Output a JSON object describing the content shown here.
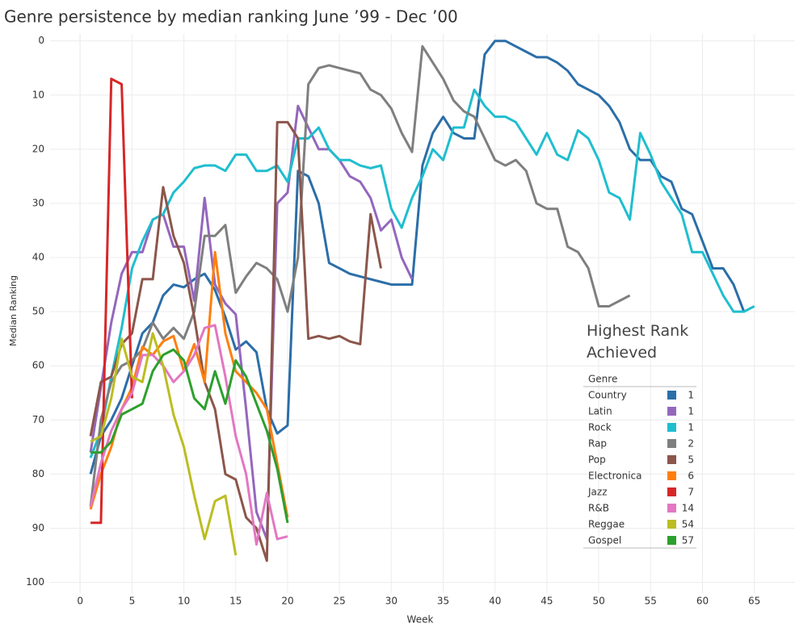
{
  "chart_data": {
    "type": "line",
    "title": "Genre persistence by median ranking June ’99 - Dec ’00",
    "x_label": "Week",
    "y_label": "Median Ranking",
    "xlim": [
      -2.9,
      69
    ],
    "ylim": [
      102,
      -1.3
    ],
    "xticks": [
      0,
      5,
      10,
      15,
      20,
      25,
      30,
      35,
      40,
      45,
      50,
      55,
      60,
      65
    ],
    "yticks": [
      0,
      10,
      20,
      30,
      40,
      50,
      60,
      70,
      80,
      90,
      100
    ],
    "grid": true,
    "legend_title": "Highest Rank Achieved",
    "legend_header": "Genre",
    "series": [
      {
        "name": "Country",
        "color": "#2b6ea8",
        "highest_rank": 1,
        "x": [
          1,
          2,
          3,
          4,
          5,
          6,
          7,
          8,
          9,
          10,
          11,
          12,
          13,
          14,
          15,
          16,
          17,
          18,
          19,
          20,
          21,
          22,
          23,
          24,
          25,
          26,
          27,
          28,
          29,
          30,
          31,
          32,
          33,
          34,
          35,
          36,
          37,
          38,
          39,
          40,
          41,
          42,
          43,
          44,
          45,
          46,
          47,
          48,
          49,
          50,
          51,
          52,
          53,
          54,
          55,
          56,
          57,
          58,
          59,
          60,
          61,
          62,
          63,
          64
        ],
        "values": [
          80,
          73,
          70,
          66,
          60,
          54,
          52,
          47,
          45,
          45.5,
          44,
          43,
          46,
          51,
          57,
          55.5,
          57.5,
          68,
          72.5,
          71,
          24,
          25,
          30,
          41,
          42,
          43,
          43.5,
          44,
          44.5,
          45,
          45,
          45,
          23,
          17,
          14,
          17,
          18,
          18,
          2.5,
          0,
          0,
          1,
          2,
          3,
          3,
          4,
          5.5,
          8,
          9,
          10,
          12,
          15,
          20,
          22,
          22,
          25,
          26,
          31,
          32,
          37,
          42,
          42,
          45,
          50
        ]
      },
      {
        "name": "Latin",
        "color": "#9467bd",
        "highest_rank": 1,
        "x": [
          1,
          2,
          3,
          4,
          5,
          6,
          7,
          8,
          9,
          10,
          11,
          12,
          13,
          14,
          15,
          16,
          17,
          18,
          19,
          20,
          21,
          22,
          23,
          24,
          25,
          26,
          27,
          28,
          29,
          30,
          31,
          32
        ],
        "values": [
          76,
          64,
          52,
          43,
          39,
          39,
          33,
          32,
          38,
          38,
          48,
          29,
          45,
          48.5,
          50.5,
          68,
          87,
          92,
          30,
          28,
          12,
          16,
          20,
          20,
          22,
          25,
          26,
          29,
          35,
          33,
          40,
          44
        ]
      },
      {
        "name": "Rock",
        "color": "#1fbecf",
        "highest_rank": 1,
        "x": [
          1,
          2,
          3,
          4,
          5,
          6,
          7,
          8,
          9,
          10,
          11,
          12,
          13,
          14,
          15,
          16,
          17,
          18,
          19,
          20,
          21,
          22,
          23,
          24,
          25,
          26,
          27,
          28,
          29,
          30,
          31,
          32,
          33,
          34,
          35,
          36,
          37,
          38,
          39,
          40,
          41,
          42,
          43,
          44,
          45,
          46,
          47,
          48,
          49,
          50,
          51,
          52,
          53,
          54,
          55,
          56,
          57,
          58,
          59,
          60,
          61,
          62,
          63,
          64,
          65
        ],
        "values": [
          77,
          72,
          62,
          53,
          42,
          37,
          33,
          32,
          28,
          26,
          23.5,
          23,
          23,
          24,
          21,
          21,
          24,
          24,
          23,
          26,
          18,
          18,
          16,
          20,
          22,
          22,
          23,
          23.5,
          23,
          31,
          34.5,
          29,
          25,
          20,
          22,
          16,
          16,
          9,
          12,
          14,
          14,
          15,
          18,
          21,
          17,
          21,
          22,
          16.5,
          18,
          22,
          28,
          29,
          33,
          17,
          21,
          26,
          29,
          32,
          39,
          39,
          43,
          47,
          50,
          50,
          49
        ]
      },
      {
        "name": "Rap",
        "color": "#7f7f7f",
        "highest_rank": 2,
        "x": [
          1,
          2,
          3,
          4,
          5,
          6,
          7,
          8,
          9,
          10,
          11,
          12,
          13,
          14,
          15,
          16,
          17,
          18,
          19,
          20,
          21,
          22,
          23,
          24,
          25,
          26,
          27,
          28,
          29,
          30,
          31,
          32,
          33,
          34,
          35,
          36,
          37,
          38,
          39,
          40,
          41,
          42,
          43,
          44,
          45,
          46,
          47,
          48,
          49,
          50,
          51,
          52,
          53
        ],
        "values": [
          86,
          70,
          63,
          60,
          59,
          57,
          52,
          55,
          53,
          55,
          50,
          36,
          36,
          34,
          46.5,
          43.5,
          41,
          42,
          44,
          50,
          40,
          8,
          5,
          4.5,
          5,
          5.5,
          6,
          9,
          10,
          12.5,
          17,
          20.5,
          1,
          4,
          7,
          11,
          13,
          14,
          18,
          22,
          23,
          22,
          24,
          30,
          31,
          31,
          38,
          39,
          42,
          49,
          49,
          48,
          47
        ]
      },
      {
        "name": "Pop",
        "color": "#8c564b",
        "highest_rank": 5,
        "x": [
          1,
          2,
          3,
          4,
          5,
          6,
          7,
          8,
          9,
          10,
          11,
          12,
          13,
          14,
          15,
          16,
          17,
          18,
          19,
          20,
          21,
          22,
          23,
          24,
          25,
          26,
          27,
          28,
          29
        ],
        "values": [
          73,
          63,
          62,
          56,
          54,
          44,
          44,
          27,
          36,
          41,
          51,
          63,
          68,
          80,
          81,
          88,
          90,
          96,
          15,
          15,
          18,
          55,
          54.5,
          55,
          54.5,
          55.5,
          56,
          32,
          42
        ]
      },
      {
        "name": "Electronica",
        "color": "#ff7f0e",
        "highest_rank": 6,
        "x": [
          1,
          2,
          3,
          4,
          5,
          6,
          7,
          8,
          9,
          10,
          11,
          12,
          13,
          14,
          15,
          16,
          17,
          18,
          19,
          20
        ],
        "values": [
          86.5,
          80,
          75,
          68,
          64,
          56.5,
          58,
          55.5,
          54.5,
          61,
          56,
          63,
          39,
          54,
          61,
          63,
          65,
          68,
          78,
          88
        ]
      },
      {
        "name": "Jazz",
        "color": "#d62728",
        "highest_rank": 7,
        "x": [
          1,
          2,
          3,
          4,
          5
        ],
        "values": [
          89,
          89,
          7,
          8,
          66
        ]
      },
      {
        "name": "R&B",
        "color": "#e377c2",
        "highest_rank": 14,
        "x": [
          1,
          2,
          3,
          4,
          5,
          6,
          7,
          8,
          9,
          10,
          11,
          12,
          13,
          14,
          15,
          16,
          17,
          18,
          19,
          20
        ],
        "values": [
          86,
          78,
          72,
          68,
          65,
          58,
          58,
          60,
          63,
          61,
          58,
          53,
          52.5,
          62,
          73,
          80,
          93,
          83.5,
          92,
          91.5
        ]
      },
      {
        "name": "Reggae",
        "color": "#bcbd22",
        "highest_rank": 54,
        "x": [
          1,
          2,
          3,
          4,
          5,
          6,
          7,
          8,
          9,
          10,
          11,
          12,
          13,
          14,
          15
        ],
        "values": [
          74,
          73,
          66,
          55,
          62,
          63,
          54,
          60,
          69,
          75,
          84,
          92,
          85,
          84,
          95
        ]
      },
      {
        "name": "Gospel",
        "color": "#2ca02c",
        "highest_rank": 57,
        "x": [
          1,
          2,
          3,
          4,
          5,
          6,
          7,
          8,
          9,
          10,
          11,
          12,
          13,
          14,
          15,
          16,
          17,
          18,
          19,
          20
        ],
        "values": [
          76,
          76,
          74,
          69,
          68,
          67,
          61,
          58,
          57,
          59,
          66,
          68,
          61,
          67,
          59,
          62,
          67,
          72,
          79,
          89
        ]
      }
    ]
  }
}
